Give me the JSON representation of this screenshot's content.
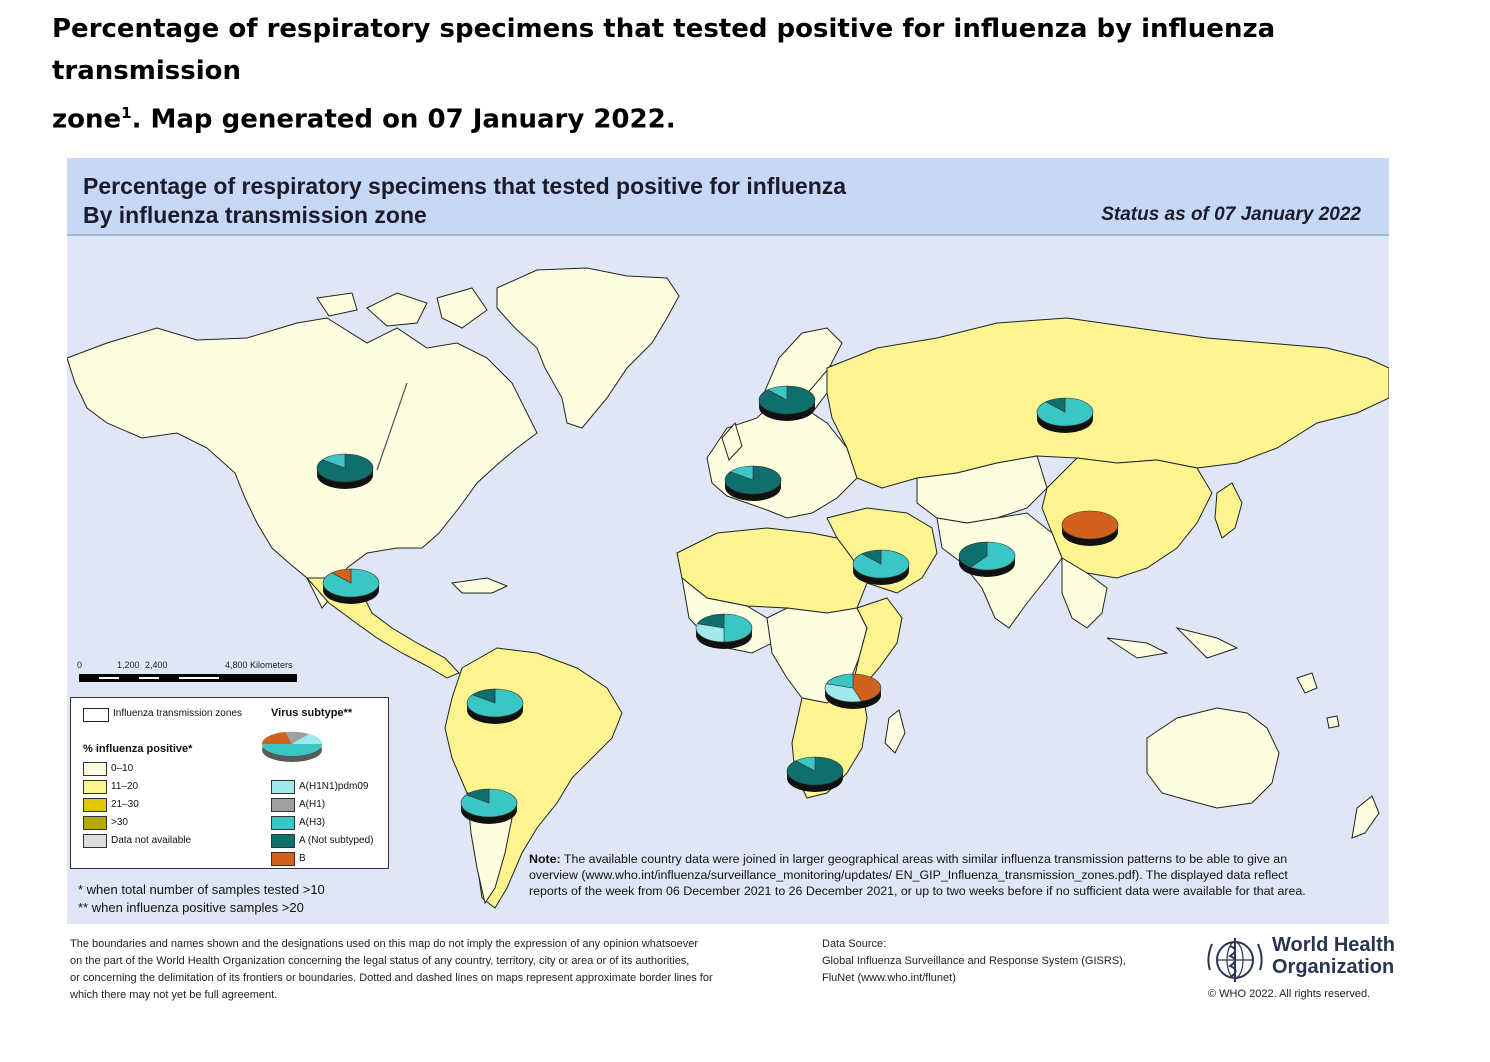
{
  "page_title": {
    "line1": "Percentage of respiratory specimens that tested positive for influenza by influenza transmission",
    "line2_prefix": "zone",
    "sup": "1",
    "line2_suffix": ". Map generated on 07 January 2022."
  },
  "map": {
    "title_line1": "Percentage of respiratory specimens that tested positive for influenza",
    "title_line2": "By influenza transmission zone",
    "status": "Status as of 07 January 2022",
    "colors": {
      "ocean": "#dfe6f6",
      "header": "#c7d8f7",
      "p0_10": "#fffde0",
      "p11_20": "#fbf48f",
      "p21_30": "#e0c800",
      "p30plus": "#b5a800",
      "no_data": "#dcdcdc",
      "h1n1pdm09": "#9fe8ec",
      "h1": "#a0a0a0",
      "h3": "#39c6c4",
      "a_not_subtyped": "#0e6f6d",
      "b": "#d0621d"
    },
    "scale": {
      "labels": [
        "0",
        "1,200",
        "2,400",
        "4,800 Kilometers"
      ]
    }
  },
  "legend": {
    "zones_label": "Influenza transmission zones",
    "virus_title": "Virus subtype**",
    "pct_title": "% influenza positive*",
    "pct_items": [
      "0–10",
      "11–20",
      "21–30",
      ">30",
      "Data not available"
    ],
    "virus_items": [
      "A(H1N1)pdm09",
      "A(H1)",
      "A(H3)",
      "A (Not subtyped)",
      "B"
    ]
  },
  "footnotes": {
    "f1": "*   when total number of samples tested >10",
    "f2": "** when influenza positive samples >20"
  },
  "note": {
    "label": "Note:",
    "text": "The available country data were joined in larger geographical areas with similar influenza transmission patterns to be able to give an overview (www.who.int/influenza/surveillance_monitoring/updates/ EN_GIP_Influenza_transmission_zones.pdf). The displayed data reflect reports of the week from 06 December 2021 to 26 December 2021, or up to two weeks before if no sufficient data were available for that area."
  },
  "disclaimer": {
    "l1": "The boundaries and names shown and the designations used on this map do not imply the expression of any opinion whatsoever",
    "l2": "on the part of the World Health Organization concerning the legal status of any country, territory, city or area or of its authorities,",
    "l3": "or concerning the delimitation of its frontiers or boundaries. Dotted and dashed lines on maps represent approximate border lines for",
    "l4": "which there may not yet be full agreement."
  },
  "data_source": {
    "l1": "Data Source:",
    "l2": "Global Influenza Surveillance and Response System (GISRS),",
    "l3": "FluNet (www.who.int/flunet)"
  },
  "who": {
    "name_line1": "World Health",
    "name_line2": "Organization",
    "copyright": "© WHO 2022. All rights reserved."
  }
}
